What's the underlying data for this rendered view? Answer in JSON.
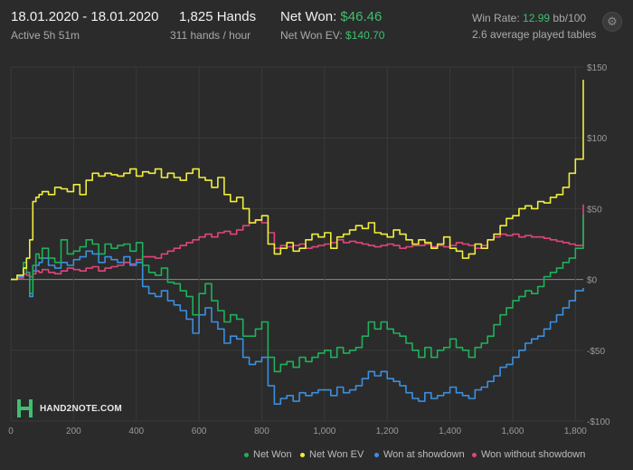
{
  "header": {
    "date_range": "18.01.2020 - 18.01.2020",
    "active": "Active 5h 51m",
    "hands": "1,825 Hands",
    "hands_per_hour": "311 hands / hour",
    "net_won_label": "Net Won:",
    "net_won_value": "$46.46",
    "net_won_ev_label": "Net Won  EV:",
    "net_won_ev_value": "$140.70",
    "win_rate_label": "Win Rate:",
    "win_rate_value": "12.99",
    "win_rate_unit": "bb/100",
    "avg_tables": "2.6 average played tables"
  },
  "logo_text": "HAND2NOTE.COM",
  "icons": {
    "settings": "gear-icon",
    "logo": "hand2note-logo-icon"
  },
  "colors": {
    "background": "#2b2b2b",
    "grid": "#3a3a3a",
    "zero_line": "#8a8a8a",
    "net_won": "#1fb15a",
    "net_won_ev": "#f0ee3c",
    "won_at_showdown": "#3b8fe0",
    "won_without_showdown": "#e0457a"
  },
  "chart_data": {
    "type": "line",
    "title": "",
    "xlabel": "",
    "ylabel": "",
    "xlim": [
      0,
      1825
    ],
    "ylim": [
      -100,
      150
    ],
    "x_ticks": [
      0,
      200,
      400,
      600,
      800,
      1000,
      1200,
      1400,
      1600,
      1800
    ],
    "x_tick_labels": [
      "0",
      "200",
      "400",
      "600",
      "800",
      "1,000",
      "1,200",
      "1,400",
      "1,600",
      "1,800"
    ],
    "y_ticks": [
      -100,
      -50,
      0,
      50,
      100,
      150
    ],
    "y_tick_labels": [
      "-$100",
      "-$50",
      "$0",
      "$50",
      "$100",
      "$150"
    ],
    "grid": true,
    "legend_position": "bottom-right",
    "series": [
      {
        "name": "Net Won",
        "color": "#1fb15a",
        "x": [
          0,
          20,
          40,
          50,
          60,
          70,
          80,
          90,
          100,
          120,
          140,
          160,
          180,
          200,
          220,
          240,
          260,
          280,
          300,
          320,
          340,
          360,
          380,
          400,
          420,
          440,
          460,
          480,
          500,
          520,
          540,
          560,
          580,
          600,
          620,
          640,
          660,
          680,
          700,
          720,
          740,
          760,
          780,
          800,
          820,
          840,
          860,
          880,
          900,
          920,
          940,
          960,
          980,
          1000,
          1020,
          1040,
          1060,
          1080,
          1100,
          1120,
          1140,
          1160,
          1180,
          1200,
          1220,
          1240,
          1260,
          1280,
          1300,
          1320,
          1340,
          1360,
          1380,
          1400,
          1420,
          1440,
          1460,
          1480,
          1500,
          1520,
          1540,
          1560,
          1580,
          1600,
          1620,
          1640,
          1660,
          1680,
          1700,
          1720,
          1740,
          1760,
          1780,
          1800,
          1825
        ],
        "y": [
          0,
          3,
          12,
          5,
          -10,
          10,
          18,
          15,
          22,
          15,
          12,
          28,
          18,
          20,
          23,
          28,
          25,
          18,
          25,
          22,
          24,
          25,
          20,
          26,
          10,
          5,
          3,
          8,
          -2,
          -3,
          -8,
          -12,
          -25,
          -10,
          -3,
          -15,
          -22,
          -30,
          -25,
          -28,
          -40,
          -40,
          -35,
          -30,
          -55,
          -65,
          -60,
          -58,
          -62,
          -55,
          -58,
          -55,
          -52,
          -50,
          -55,
          -48,
          -52,
          -50,
          -48,
          -40,
          -30,
          -35,
          -30,
          -35,
          -38,
          -40,
          -45,
          -50,
          -55,
          -48,
          -55,
          -50,
          -48,
          -42,
          -48,
          -50,
          -55,
          -48,
          -45,
          -40,
          -32,
          -25,
          -20,
          -15,
          -12,
          -8,
          -10,
          -5,
          2,
          5,
          8,
          12,
          15,
          22,
          46
        ]
      },
      {
        "name": "Net Won  EV",
        "color": "#f0ee3c",
        "x": [
          0,
          20,
          40,
          50,
          60,
          70,
          80,
          90,
          100,
          120,
          140,
          160,
          180,
          200,
          220,
          240,
          260,
          280,
          300,
          320,
          340,
          360,
          380,
          400,
          420,
          440,
          460,
          480,
          500,
          520,
          540,
          560,
          580,
          600,
          620,
          640,
          660,
          680,
          700,
          720,
          740,
          760,
          780,
          800,
          820,
          840,
          860,
          880,
          900,
          920,
          940,
          960,
          980,
          1000,
          1020,
          1040,
          1060,
          1080,
          1100,
          1120,
          1140,
          1160,
          1180,
          1200,
          1220,
          1240,
          1260,
          1280,
          1300,
          1320,
          1340,
          1360,
          1380,
          1400,
          1420,
          1440,
          1460,
          1480,
          1500,
          1520,
          1540,
          1560,
          1580,
          1600,
          1620,
          1640,
          1660,
          1680,
          1700,
          1720,
          1740,
          1760,
          1780,
          1800,
          1825
        ],
        "y": [
          0,
          3,
          8,
          15,
          28,
          55,
          58,
          60,
          62,
          60,
          65,
          64,
          62,
          67,
          60,
          70,
          75,
          73,
          75,
          74,
          73,
          75,
          78,
          73,
          76,
          75,
          78,
          72,
          75,
          72,
          70,
          75,
          78,
          72,
          70,
          65,
          72,
          60,
          55,
          58,
          50,
          40,
          42,
          45,
          25,
          18,
          22,
          26,
          20,
          22,
          28,
          32,
          30,
          33,
          22,
          30,
          32,
          35,
          38,
          36,
          40,
          33,
          32,
          30,
          35,
          32,
          28,
          25,
          28,
          26,
          22,
          25,
          30,
          22,
          20,
          15,
          18,
          25,
          22,
          28,
          32,
          38,
          43,
          45,
          50,
          52,
          50,
          55,
          54,
          58,
          60,
          65,
          75,
          85,
          141
        ]
      },
      {
        "name": "Won at showdown",
        "color": "#3b8fe0",
        "x": [
          0,
          20,
          40,
          50,
          60,
          70,
          80,
          90,
          100,
          120,
          140,
          160,
          180,
          200,
          220,
          240,
          260,
          280,
          300,
          320,
          340,
          360,
          380,
          400,
          420,
          440,
          460,
          480,
          500,
          520,
          540,
          560,
          580,
          600,
          620,
          640,
          660,
          680,
          700,
          720,
          740,
          760,
          780,
          800,
          820,
          840,
          860,
          880,
          900,
          920,
          940,
          960,
          980,
          1000,
          1020,
          1040,
          1060,
          1080,
          1100,
          1120,
          1140,
          1160,
          1180,
          1200,
          1220,
          1240,
          1260,
          1280,
          1300,
          1320,
          1340,
          1360,
          1380,
          1400,
          1420,
          1440,
          1460,
          1480,
          1500,
          1520,
          1540,
          1560,
          1580,
          1600,
          1620,
          1640,
          1660,
          1680,
          1700,
          1720,
          1740,
          1760,
          1780,
          1800,
          1825
        ],
        "y": [
          0,
          2,
          8,
          5,
          -12,
          6,
          10,
          12,
          15,
          10,
          8,
          12,
          10,
          14,
          16,
          20,
          18,
          12,
          16,
          14,
          12,
          16,
          10,
          12,
          -5,
          -10,
          -12,
          -8,
          -15,
          -18,
          -22,
          -28,
          -38,
          -25,
          -20,
          -30,
          -35,
          -45,
          -40,
          -42,
          -55,
          -60,
          -58,
          -55,
          -75,
          -88,
          -84,
          -82,
          -86,
          -80,
          -82,
          -80,
          -78,
          -78,
          -82,
          -76,
          -80,
          -78,
          -75,
          -70,
          -65,
          -68,
          -65,
          -70,
          -72,
          -75,
          -80,
          -84,
          -86,
          -80,
          -84,
          -82,
          -80,
          -76,
          -80,
          -82,
          -84,
          -78,
          -76,
          -72,
          -68,
          -62,
          -60,
          -55,
          -50,
          -45,
          -42,
          -40,
          -35,
          -30,
          -25,
          -20,
          -15,
          -8,
          -6
        ]
      },
      {
        "name": "Won without showdown",
        "color": "#e0457a",
        "x": [
          0,
          20,
          40,
          50,
          60,
          70,
          80,
          90,
          100,
          120,
          140,
          160,
          180,
          200,
          220,
          240,
          260,
          280,
          300,
          320,
          340,
          360,
          380,
          400,
          420,
          440,
          460,
          480,
          500,
          520,
          540,
          560,
          580,
          600,
          620,
          640,
          660,
          680,
          700,
          720,
          740,
          760,
          780,
          800,
          820,
          840,
          860,
          880,
          900,
          920,
          940,
          960,
          980,
          1000,
          1020,
          1040,
          1060,
          1080,
          1100,
          1120,
          1140,
          1160,
          1180,
          1200,
          1220,
          1240,
          1260,
          1280,
          1300,
          1320,
          1340,
          1360,
          1380,
          1400,
          1420,
          1440,
          1460,
          1480,
          1500,
          1520,
          1540,
          1560,
          1580,
          1600,
          1620,
          1640,
          1660,
          1680,
          1700,
          1720,
          1740,
          1760,
          1780,
          1800,
          1825
        ],
        "y": [
          0,
          1,
          4,
          3,
          2,
          4,
          6,
          5,
          7,
          5,
          4,
          6,
          8,
          7,
          6,
          8,
          9,
          6,
          8,
          9,
          10,
          12,
          11,
          14,
          16,
          16,
          15,
          18,
          20,
          22,
          24,
          26,
          28,
          30,
          32,
          30,
          33,
          34,
          32,
          35,
          38,
          40,
          42,
          40,
          33,
          22,
          24,
          23,
          24,
          25,
          22,
          23,
          24,
          25,
          26,
          28,
          26,
          27,
          26,
          25,
          24,
          23,
          24,
          25,
          24,
          22,
          23,
          24,
          24,
          25,
          23,
          24,
          23,
          24,
          26,
          25,
          24,
          22,
          24,
          28,
          30,
          32,
          31,
          32,
          30,
          31,
          30,
          30,
          29,
          28,
          27,
          26,
          25,
          24,
          53
        ]
      }
    ]
  }
}
